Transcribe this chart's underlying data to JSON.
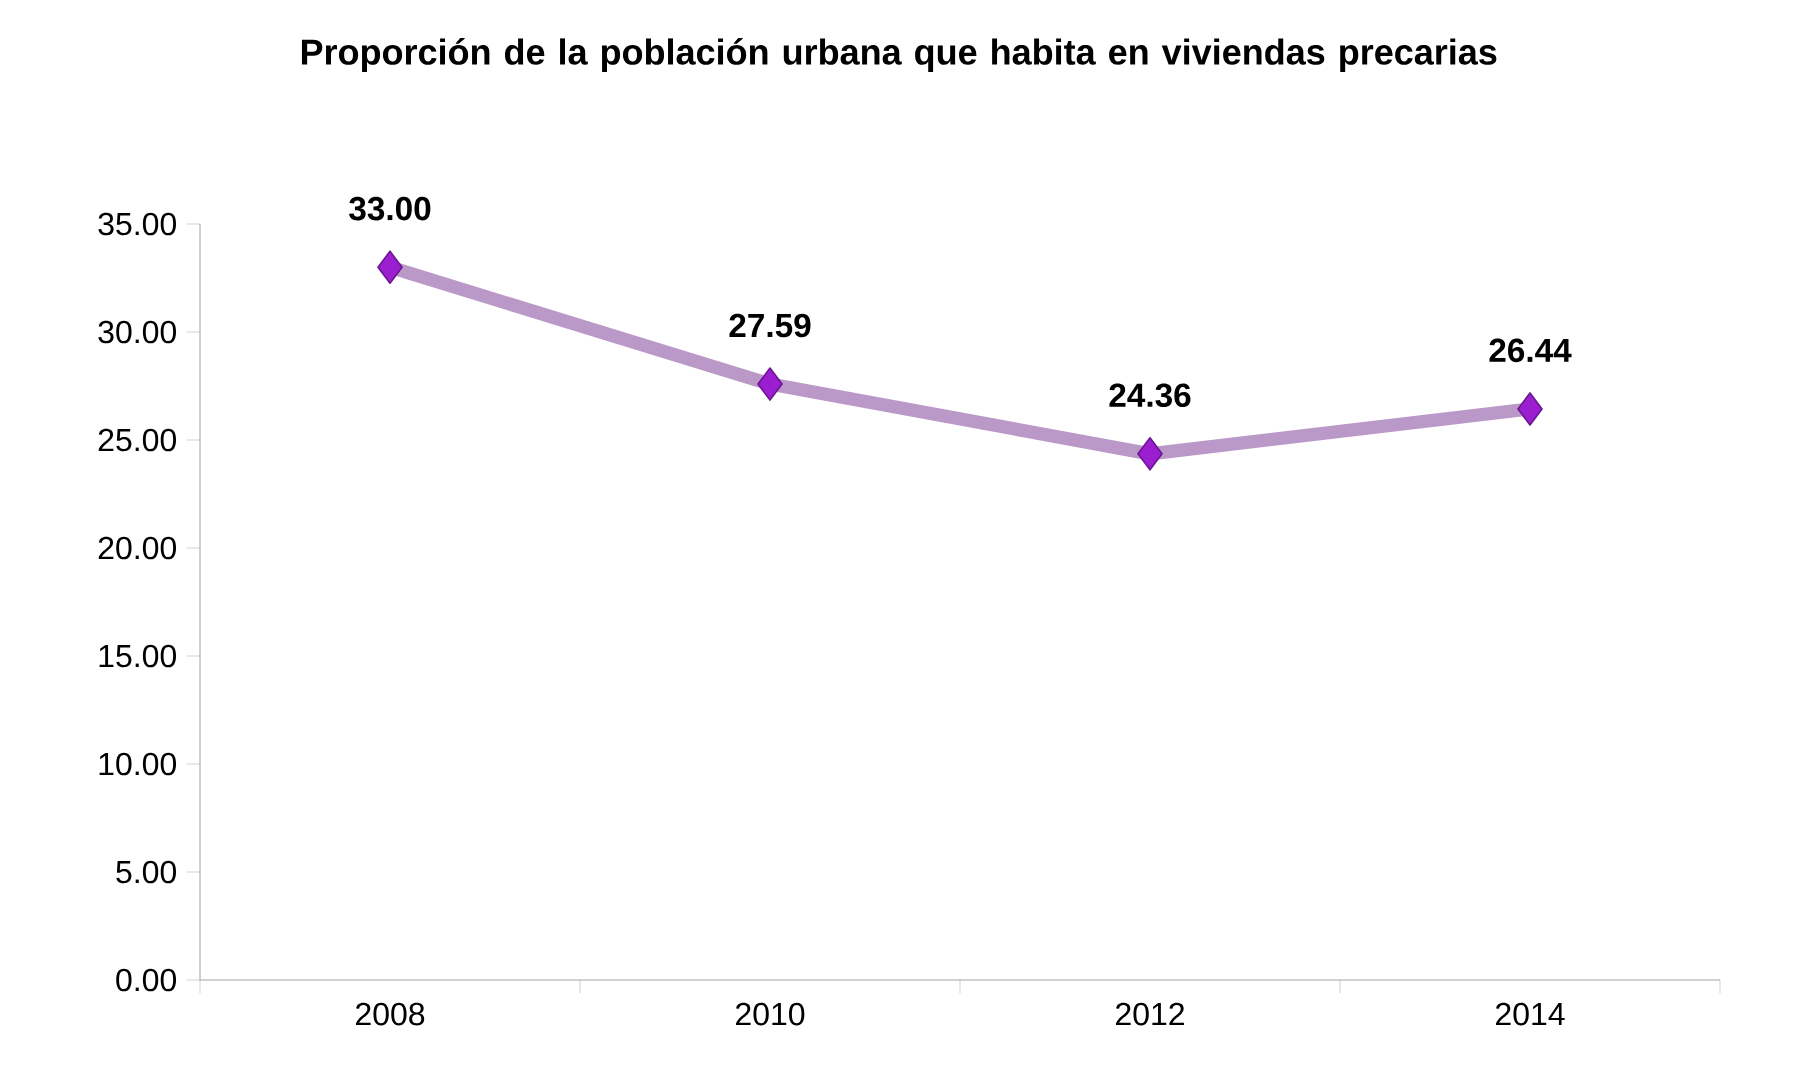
{
  "chart_data": {
    "type": "line",
    "title": "Proporción de la población urbana que habita en viviendas precarias",
    "categories": [
      "2008",
      "2010",
      "2012",
      "2014"
    ],
    "series": [
      {
        "color": "#9b1fd0",
        "values": [
          33.0,
          27.59,
          24.36,
          26.44
        ],
        "value_labels": [
          "33.00",
          "27.59",
          "24.36",
          "26.44"
        ]
      }
    ],
    "ylim": [
      0,
      35
    ],
    "yticks": [
      {
        "value": 0,
        "label": "0.00"
      },
      {
        "value": 5,
        "label": "5.00"
      },
      {
        "value": 10,
        "label": "10.00"
      },
      {
        "value": 15,
        "label": "15.00"
      },
      {
        "value": 20,
        "label": "20.00"
      },
      {
        "value": 25,
        "label": "25.00"
      },
      {
        "value": 30,
        "label": "30.00"
      },
      {
        "value": 35,
        "label": "35.00"
      }
    ],
    "grid": false,
    "marker": "diamond",
    "line_style": "solid"
  }
}
